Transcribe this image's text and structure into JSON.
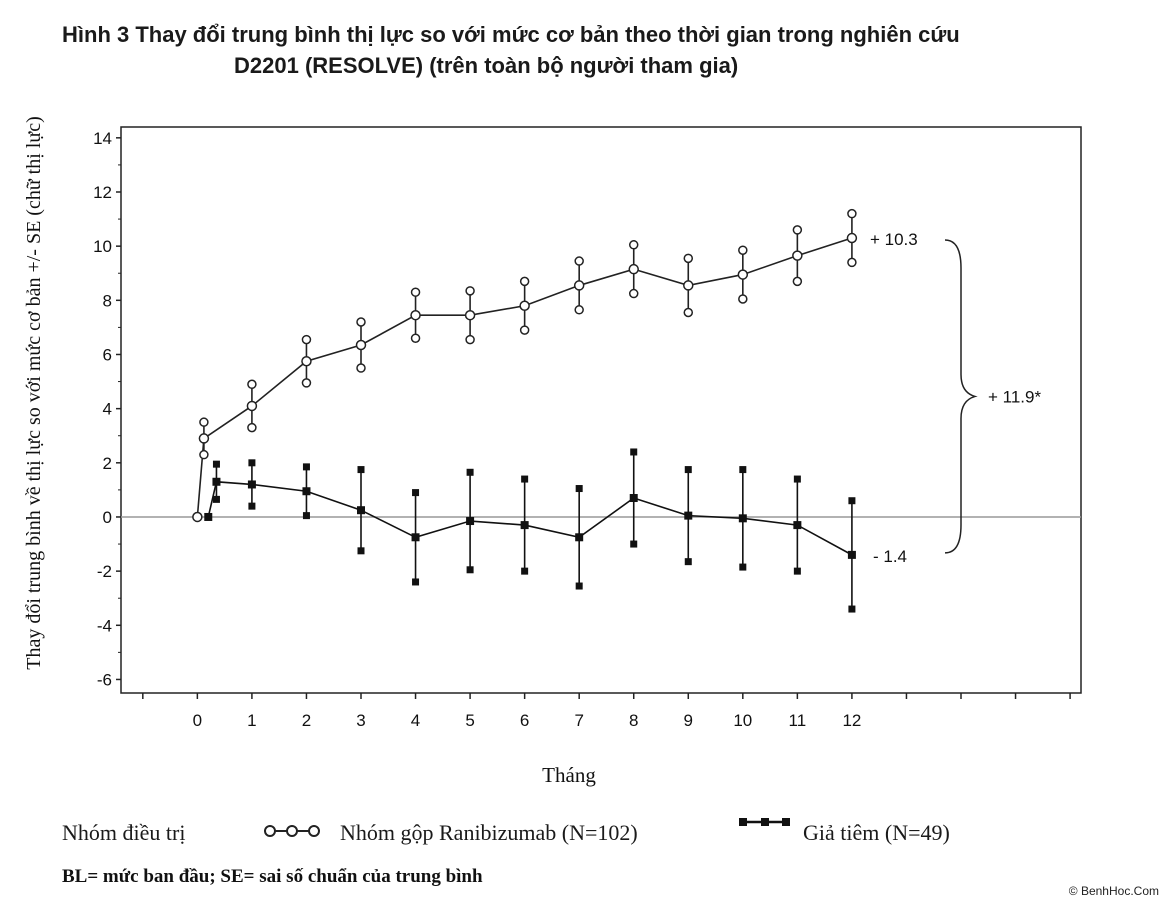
{
  "title": {
    "line1": "Hình 3  Thay đổi trung bình thị lực so với mức cơ bản theo thời gian trong nghiên cứu",
    "line2": "D2201 (RESOLVE) (trên toàn bộ người tham gia)"
  },
  "chart_data": {
    "type": "line",
    "xlabel": "Tháng",
    "ylabel": "Thay đổi trung bình về thị lực so với mức cơ bản +/- SE (chữ thị lực)",
    "xlim": [
      -1.4,
      16.2
    ],
    "ylim": [
      -6.5,
      14.4
    ],
    "x_ticks": [
      0,
      1,
      2,
      3,
      4,
      5,
      6,
      7,
      8,
      9,
      10,
      11,
      12
    ],
    "y_ticks": [
      -6,
      -4,
      -2,
      0,
      2,
      4,
      6,
      8,
      10,
      12,
      14
    ],
    "reference_line": 0,
    "grid": false,
    "series": [
      {
        "name": "Nhóm gộp Ranibizumab (N=102)",
        "marker": "open-circle",
        "color": "#222222",
        "points": [
          {
            "x": 0,
            "y": 0.0,
            "se": 0.0
          },
          {
            "x": 0.12,
            "y": 2.9,
            "se": 0.6
          },
          {
            "x": 1,
            "y": 4.1,
            "se": 0.8
          },
          {
            "x": 2,
            "y": 5.75,
            "se": 0.8
          },
          {
            "x": 3,
            "y": 6.35,
            "se": 0.85
          },
          {
            "x": 4,
            "y": 7.45,
            "se": 0.85
          },
          {
            "x": 5,
            "y": 7.45,
            "se": 0.9
          },
          {
            "x": 6,
            "y": 7.8,
            "se": 0.9
          },
          {
            "x": 7,
            "y": 8.55,
            "se": 0.9
          },
          {
            "x": 8,
            "y": 9.15,
            "se": 0.9
          },
          {
            "x": 9,
            "y": 8.55,
            "se": 1.0
          },
          {
            "x": 10,
            "y": 8.95,
            "se": 0.9
          },
          {
            "x": 11,
            "y": 9.65,
            "se": 0.95
          },
          {
            "x": 12,
            "y": 10.3,
            "se": 0.9
          }
        ]
      },
      {
        "name": "Giả tiêm (N=49)",
        "marker": "filled-square",
        "color": "#111111",
        "points": [
          {
            "x": 0.2,
            "y": 0.0,
            "se": 0.0
          },
          {
            "x": 0.35,
            "y": 1.3,
            "se": 0.65
          },
          {
            "x": 1,
            "y": 1.2,
            "se": 0.8
          },
          {
            "x": 2,
            "y": 0.95,
            "se": 0.9
          },
          {
            "x": 3,
            "y": 0.25,
            "se": 1.5
          },
          {
            "x": 4,
            "y": -0.75,
            "se": 1.65
          },
          {
            "x": 5,
            "y": -0.15,
            "se": 1.8
          },
          {
            "x": 6,
            "y": -0.3,
            "se": 1.7
          },
          {
            "x": 7,
            "y": -0.75,
            "se": 1.8
          },
          {
            "x": 8,
            "y": 0.7,
            "se": 1.7
          },
          {
            "x": 9,
            "y": 0.05,
            "se": 1.7
          },
          {
            "x": 10,
            "y": -0.05,
            "se": 1.8
          },
          {
            "x": 11,
            "y": -0.3,
            "se": 1.7
          },
          {
            "x": 12,
            "y": -1.4,
            "se": 2.0
          }
        ]
      }
    ],
    "annotations": {
      "top_value": "+ 10.3",
      "bottom_value": "- 1.4",
      "difference": "+ 11.9*"
    }
  },
  "legend": {
    "group_label": "Nhóm điều trị",
    "series1_label": "Nhóm gộp Ranibizumab (N=102)",
    "series2_label": "Giả tiêm (N=49)"
  },
  "note": "BL= mức ban đầu; SE= sai số chuẩn của trung bình",
  "watermark": "© BenhHoc.Com"
}
